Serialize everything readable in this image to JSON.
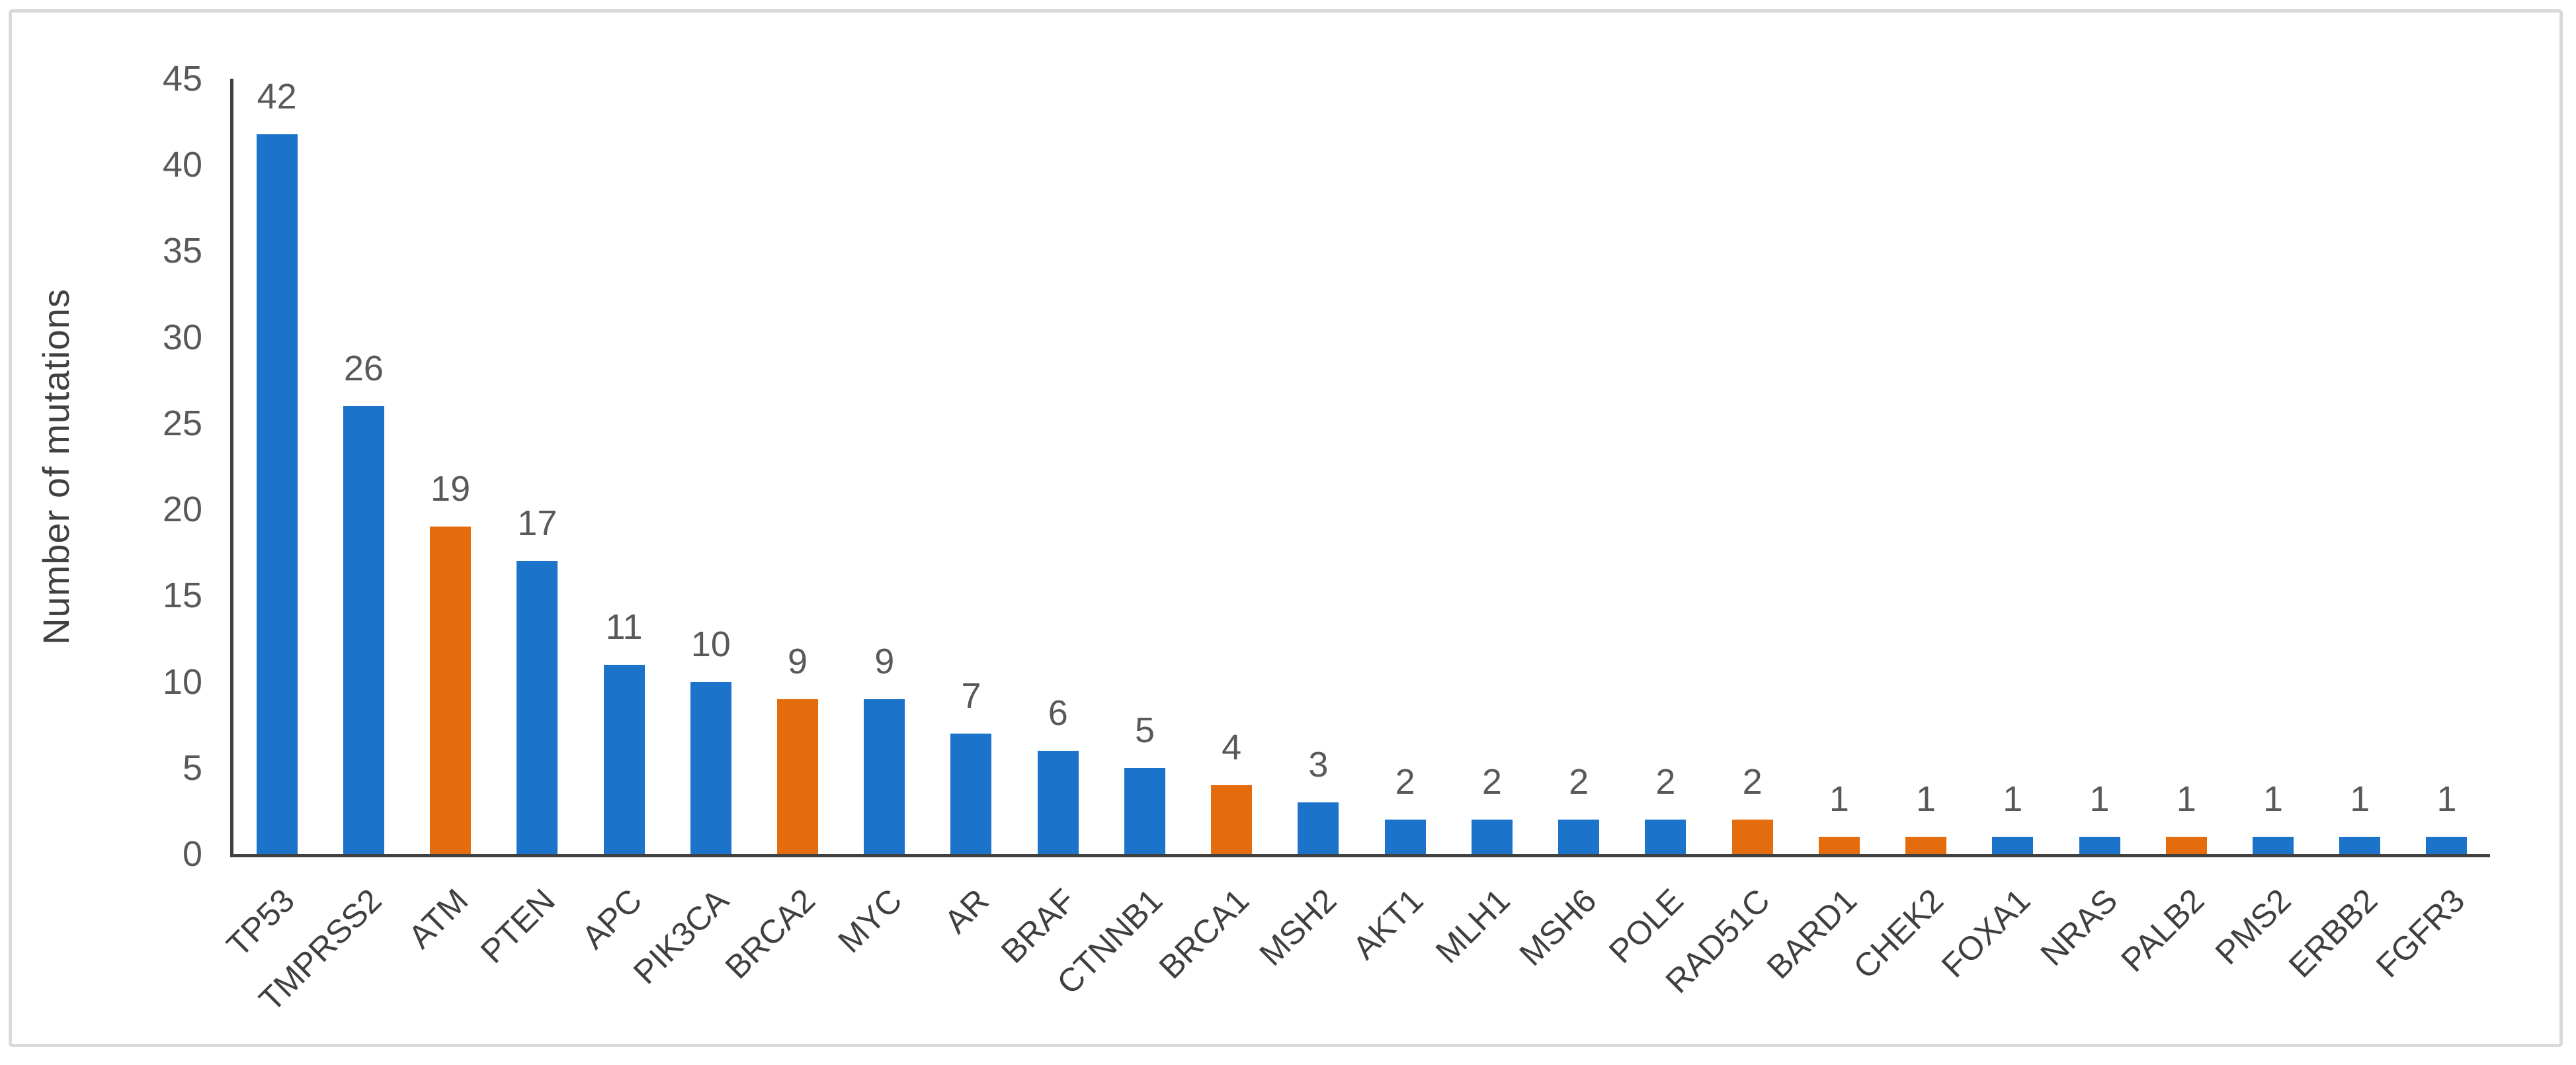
{
  "chart_data": {
    "type": "bar",
    "title": "",
    "xlabel": "",
    "ylabel": "Number of mutations",
    "ylim": [
      0,
      45
    ],
    "yticks": [
      0,
      5,
      10,
      15,
      20,
      25,
      30,
      35,
      40,
      45
    ],
    "grid": false,
    "legend": null,
    "categories": [
      "TP53",
      "TMPRSS2",
      "ATM",
      "PTEN",
      "APC",
      "PIK3CA",
      "BRCA2",
      "MYC",
      "AR",
      "BRAF",
      "CTNNB1",
      "BRCA1",
      "MSH2",
      "AKT1",
      "MLH1",
      "MSH6",
      "POLE",
      "RAD51C",
      "BARD1",
      "CHEK2",
      "FOXA1",
      "NRAS",
      "PALB2",
      "PMS2",
      "ERBB2",
      "FGFR3"
    ],
    "values": [
      42,
      26,
      19,
      17,
      11,
      10,
      9,
      9,
      7,
      6,
      5,
      4,
      3,
      2,
      2,
      2,
      2,
      2,
      1,
      1,
      1,
      1,
      1,
      1,
      1,
      1
    ],
    "bar_colors": [
      "#1B73CA",
      "#1B73CA",
      "#E56C0C",
      "#1B73CA",
      "#1B73CA",
      "#1B73CA",
      "#E56C0C",
      "#1B73CA",
      "#1B73CA",
      "#1B73CA",
      "#1B73CA",
      "#E56C0C",
      "#1B73CA",
      "#1B73CA",
      "#1B73CA",
      "#1B73CA",
      "#1B73CA",
      "#E56C0C",
      "#E56C0C",
      "#E56C0C",
      "#1B73CA",
      "#1B73CA",
      "#E56C0C",
      "#1B73CA",
      "#1B73CA",
      "#1B73CA"
    ],
    "highlighted_categories": [
      "ATM",
      "BRCA2",
      "BRCA1",
      "RAD51C",
      "BARD1",
      "CHEK2",
      "PALB2"
    ],
    "value_labels_shown": true,
    "category_label_rotation_deg": -45
  },
  "colors": {
    "bar_blue": "#1B73CA",
    "bar_orange": "#E56C0C",
    "axis_line": "#404040",
    "tick_label": "#595959",
    "value_label": "#595959",
    "category_label": "#3F3F3F",
    "axis_title": "#404040",
    "frame_border": "#D9D9D9",
    "background": "#FFFFFF"
  }
}
